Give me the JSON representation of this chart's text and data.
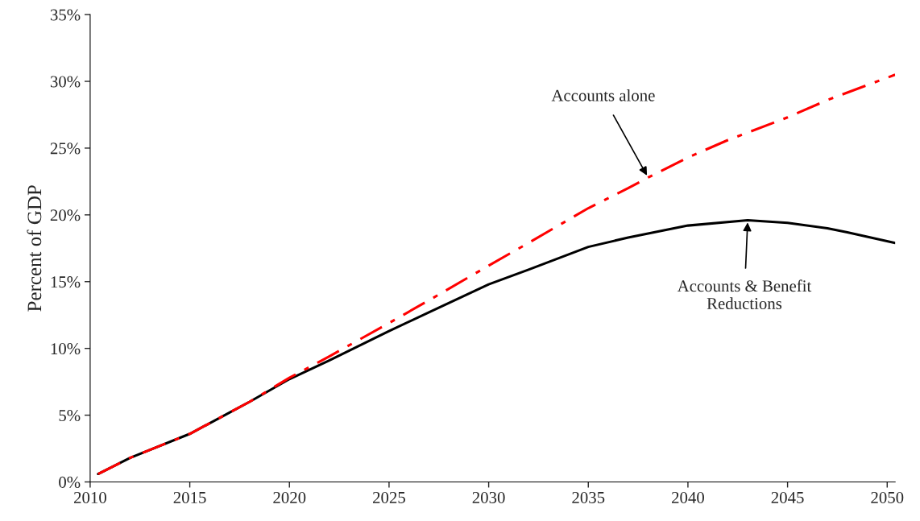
{
  "chart_data": {
    "type": "line",
    "ylabel": "Percent of GDP",
    "xlim": [
      2010,
      2050.4
    ],
    "xticks": [
      2010,
      2015,
      2020,
      2025,
      2030,
      2035,
      2040,
      2045,
      2050
    ],
    "ylim": [
      0,
      35
    ],
    "yticks": [
      {
        "value": 0,
        "label": "0%"
      },
      {
        "value": 5,
        "label": "5%"
      },
      {
        "value": 10,
        "label": "10%"
      },
      {
        "value": 15,
        "label": "15%"
      },
      {
        "value": 20,
        "label": "20%"
      },
      {
        "value": 25,
        "label": "25%"
      },
      {
        "value": 30,
        "label": "30%"
      },
      {
        "value": 35,
        "label": "35%"
      }
    ],
    "grid": false,
    "legend": false,
    "marker": "none",
    "series": [
      {
        "color": "#000000",
        "line_style": "solid",
        "x": [
          2010.4,
          2012,
          2015,
          2018,
          2020,
          2022,
          2025,
          2027,
          2030,
          2032,
          2035,
          2037,
          2040,
          2043,
          2045,
          2047,
          2048,
          2050.4
        ],
        "values": [
          0.6,
          1.8,
          3.6,
          6.0,
          7.7,
          9.1,
          11.3,
          12.7,
          14.8,
          15.9,
          17.6,
          18.3,
          19.2,
          19.6,
          19.4,
          19.0,
          18.7,
          17.9
        ]
      },
      {
        "color": "#ff0000",
        "line_style": "dashed",
        "x": [
          2010.4,
          2012,
          2015,
          2018,
          2020,
          2022,
          2025,
          2027,
          2030,
          2032,
          2035,
          2037,
          2038,
          2040,
          2042,
          2045,
          2047,
          2050.4
        ],
        "values": [
          0.6,
          1.8,
          3.6,
          6.0,
          7.8,
          9.4,
          11.9,
          13.6,
          16.2,
          17.9,
          20.5,
          22.0,
          22.8,
          24.3,
          25.6,
          27.3,
          28.6,
          30.5
        ]
      }
    ],
    "annotations": [
      {
        "text": "Accounts alone",
        "x": 2038,
        "y": 22.8
      },
      {
        "text": "Accounts & Benefit\nReductions",
        "x": 2043,
        "y": 19.6
      }
    ]
  }
}
